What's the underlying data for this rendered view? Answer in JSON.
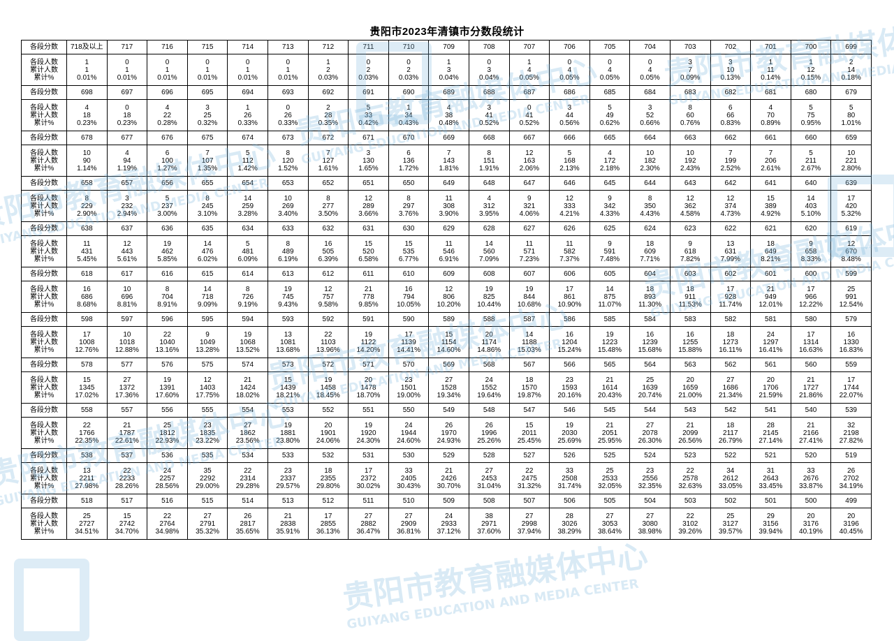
{
  "title": "贵阳市2023年清镇市分数段统计",
  "labels": {
    "score": "各段分数",
    "count": "各段人数",
    "cumulative": "累计人数",
    "percent": "累计%"
  },
  "watermark": {
    "cn": "贵阳市教育融媒体中心",
    "en": "GUIYANG EDUCATION AND MEDIA CENTER"
  },
  "blocks": [
    {
      "scores": [
        "718及以上",
        "717",
        "716",
        "715",
        "714",
        "713",
        "712",
        "711",
        "710",
        "709",
        "708",
        "707",
        "706",
        "705",
        "704",
        "703",
        "702",
        "701",
        "700",
        "699"
      ],
      "counts": [
        "1",
        "0",
        "0",
        "0",
        "0",
        "0",
        "1",
        "0",
        "0",
        "1",
        "0",
        "1",
        "0",
        "0",
        "0",
        "3",
        "3",
        "1",
        "1",
        "2"
      ],
      "cumulative": [
        "1",
        "1",
        "1",
        "1",
        "1",
        "1",
        "2",
        "2",
        "2",
        "3",
        "3",
        "4",
        "4",
        "4",
        "4",
        "7",
        "10",
        "11",
        "12",
        "14"
      ],
      "percent": [
        "0.01%",
        "0.01%",
        "0.01%",
        "0.01%",
        "0.01%",
        "0.01%",
        "0.03%",
        "0.03%",
        "0.03%",
        "0.04%",
        "0.04%",
        "0.05%",
        "0.05%",
        "0.05%",
        "0.05%",
        "0.09%",
        "0.13%",
        "0.14%",
        "0.15%",
        "0.18%"
      ]
    },
    {
      "scores": [
        "698",
        "697",
        "696",
        "695",
        "694",
        "693",
        "692",
        "691",
        "690",
        "689",
        "688",
        "687",
        "686",
        "685",
        "684",
        "683",
        "682",
        "681",
        "680",
        "679"
      ],
      "counts": [
        "4",
        "0",
        "4",
        "3",
        "1",
        "0",
        "2",
        "5",
        "1",
        "4",
        "3",
        "0",
        "3",
        "5",
        "3",
        "8",
        "6",
        "4",
        "5",
        "5"
      ],
      "cumulative": [
        "18",
        "18",
        "22",
        "25",
        "26",
        "26",
        "28",
        "33",
        "34",
        "38",
        "41",
        "41",
        "44",
        "49",
        "52",
        "60",
        "66",
        "70",
        "75",
        "80"
      ],
      "percent": [
        "0.23%",
        "0.23%",
        "0.28%",
        "0.32%",
        "0.33%",
        "0.33%",
        "0.35%",
        "0.42%",
        "0.43%",
        "0.48%",
        "0.52%",
        "0.52%",
        "0.56%",
        "0.62%",
        "0.66%",
        "0.76%",
        "0.83%",
        "0.89%",
        "0.95%",
        "1.01%"
      ]
    },
    {
      "scores": [
        "678",
        "677",
        "676",
        "675",
        "674",
        "673",
        "672",
        "671",
        "670",
        "669",
        "668",
        "667",
        "666",
        "665",
        "664",
        "663",
        "662",
        "661",
        "660",
        "659"
      ],
      "counts": [
        "10",
        "4",
        "6",
        "7",
        "5",
        "8",
        "7",
        "3",
        "6",
        "7",
        "8",
        "12",
        "5",
        "4",
        "10",
        "10",
        "7",
        "7",
        "5",
        "10"
      ],
      "cumulative": [
        "90",
        "94",
        "100",
        "107",
        "112",
        "120",
        "127",
        "130",
        "136",
        "143",
        "151",
        "163",
        "168",
        "172",
        "182",
        "192",
        "199",
        "206",
        "211",
        "221"
      ],
      "percent": [
        "1.14%",
        "1.19%",
        "1.27%",
        "1.35%",
        "1.42%",
        "1.52%",
        "1.61%",
        "1.65%",
        "1.72%",
        "1.81%",
        "1.91%",
        "2.06%",
        "2.13%",
        "2.18%",
        "2.30%",
        "2.43%",
        "2.52%",
        "2.61%",
        "2.67%",
        "2.80%"
      ]
    },
    {
      "scores": [
        "658",
        "657",
        "656",
        "655",
        "654",
        "653",
        "652",
        "651",
        "650",
        "649",
        "648",
        "647",
        "646",
        "645",
        "644",
        "643",
        "642",
        "641",
        "640",
        "639"
      ],
      "counts": [
        "8",
        "3",
        "5",
        "8",
        "14",
        "10",
        "8",
        "12",
        "8",
        "11",
        "4",
        "9",
        "12",
        "9",
        "8",
        "12",
        "12",
        "15",
        "14",
        "17"
      ],
      "cumulative": [
        "229",
        "232",
        "237",
        "245",
        "259",
        "269",
        "277",
        "289",
        "297",
        "308",
        "312",
        "321",
        "333",
        "342",
        "350",
        "362",
        "374",
        "389",
        "403",
        "420"
      ],
      "percent": [
        "2.90%",
        "2.94%",
        "3.00%",
        "3.10%",
        "3.28%",
        "3.40%",
        "3.50%",
        "3.66%",
        "3.76%",
        "3.90%",
        "3.95%",
        "4.06%",
        "4.21%",
        "4.33%",
        "4.43%",
        "4.58%",
        "4.73%",
        "4.92%",
        "5.10%",
        "5.32%"
      ]
    },
    {
      "scores": [
        "638",
        "637",
        "636",
        "635",
        "634",
        "633",
        "632",
        "631",
        "630",
        "629",
        "628",
        "627",
        "626",
        "625",
        "624",
        "623",
        "622",
        "621",
        "620",
        "619"
      ],
      "counts": [
        "11",
        "12",
        "19",
        "14",
        "5",
        "8",
        "16",
        "15",
        "15",
        "11",
        "14",
        "11",
        "11",
        "9",
        "18",
        "9",
        "13",
        "18",
        "9",
        "12"
      ],
      "cumulative": [
        "431",
        "443",
        "462",
        "476",
        "481",
        "489",
        "505",
        "520",
        "535",
        "546",
        "560",
        "571",
        "582",
        "591",
        "609",
        "618",
        "631",
        "649",
        "658",
        "670"
      ],
      "percent": [
        "5.45%",
        "5.61%",
        "5.85%",
        "6.02%",
        "6.09%",
        "6.19%",
        "6.39%",
        "6.58%",
        "6.77%",
        "6.91%",
        "7.09%",
        "7.23%",
        "7.37%",
        "7.48%",
        "7.71%",
        "7.82%",
        "7.99%",
        "8.21%",
        "8.33%",
        "8.48%"
      ]
    },
    {
      "scores": [
        "618",
        "617",
        "616",
        "615",
        "614",
        "613",
        "612",
        "611",
        "610",
        "609",
        "608",
        "607",
        "606",
        "605",
        "604",
        "603",
        "602",
        "601",
        "600",
        "599"
      ],
      "counts": [
        "16",
        "10",
        "8",
        "14",
        "8",
        "19",
        "12",
        "21",
        "16",
        "12",
        "19",
        "19",
        "17",
        "14",
        "18",
        "18",
        "17",
        "21",
        "17",
        "25"
      ],
      "cumulative": [
        "686",
        "696",
        "704",
        "718",
        "726",
        "745",
        "757",
        "778",
        "794",
        "806",
        "825",
        "844",
        "861",
        "875",
        "893",
        "911",
        "928",
        "949",
        "966",
        "991"
      ],
      "percent": [
        "8.68%",
        "8.81%",
        "8.91%",
        "9.09%",
        "9.19%",
        "9.43%",
        "9.58%",
        "9.85%",
        "10.05%",
        "10.20%",
        "10.44%",
        "10.68%",
        "10.90%",
        "11.07%",
        "11.30%",
        "11.53%",
        "11.74%",
        "12.01%",
        "12.22%",
        "12.54%"
      ]
    },
    {
      "scores": [
        "598",
        "597",
        "596",
        "595",
        "594",
        "593",
        "592",
        "591",
        "590",
        "589",
        "588",
        "587",
        "586",
        "585",
        "584",
        "583",
        "582",
        "581",
        "580",
        "579"
      ],
      "counts": [
        "17",
        "10",
        "22",
        "9",
        "19",
        "13",
        "22",
        "19",
        "17",
        "15",
        "20",
        "14",
        "16",
        "19",
        "16",
        "16",
        "18",
        "24",
        "17",
        "16"
      ],
      "cumulative": [
        "1008",
        "1018",
        "1040",
        "1049",
        "1068",
        "1081",
        "1103",
        "1122",
        "1139",
        "1154",
        "1174",
        "1188",
        "1204",
        "1223",
        "1239",
        "1255",
        "1273",
        "1297",
        "1314",
        "1330"
      ],
      "percent": [
        "12.76%",
        "12.88%",
        "13.16%",
        "13.28%",
        "13.52%",
        "13.68%",
        "13.96%",
        "14.20%",
        "14.41%",
        "14.60%",
        "14.86%",
        "15.03%",
        "15.24%",
        "15.48%",
        "15.68%",
        "15.88%",
        "16.11%",
        "16.41%",
        "16.63%",
        "16.83%"
      ]
    },
    {
      "scores": [
        "578",
        "577",
        "576",
        "575",
        "574",
        "573",
        "572",
        "571",
        "570",
        "569",
        "568",
        "567",
        "566",
        "565",
        "564",
        "563",
        "562",
        "561",
        "560",
        "559"
      ],
      "counts": [
        "15",
        "27",
        "19",
        "12",
        "21",
        "15",
        "19",
        "20",
        "23",
        "27",
        "24",
        "18",
        "23",
        "21",
        "25",
        "20",
        "27",
        "20",
        "21",
        "17"
      ],
      "cumulative": [
        "1345",
        "1372",
        "1391",
        "1403",
        "1424",
        "1439",
        "1458",
        "1478",
        "1501",
        "1528",
        "1552",
        "1570",
        "1593",
        "1614",
        "1639",
        "1659",
        "1686",
        "1706",
        "1727",
        "1744"
      ],
      "percent": [
        "17.02%",
        "17.36%",
        "17.60%",
        "17.75%",
        "18.02%",
        "18.21%",
        "18.45%",
        "18.70%",
        "19.00%",
        "19.34%",
        "19.64%",
        "19.87%",
        "20.16%",
        "20.43%",
        "20.74%",
        "21.00%",
        "21.34%",
        "21.59%",
        "21.86%",
        "22.07%"
      ]
    },
    {
      "scores": [
        "558",
        "557",
        "556",
        "555",
        "554",
        "553",
        "552",
        "551",
        "550",
        "549",
        "548",
        "547",
        "546",
        "545",
        "544",
        "543",
        "542",
        "541",
        "540",
        "539"
      ],
      "counts": [
        "22",
        "21",
        "25",
        "23",
        "27",
        "19",
        "20",
        "19",
        "24",
        "26",
        "26",
        "15",
        "19",
        "21",
        "27",
        "21",
        "18",
        "28",
        "21",
        "32"
      ],
      "cumulative": [
        "1766",
        "1787",
        "1812",
        "1835",
        "1862",
        "1881",
        "1901",
        "1920",
        "1944",
        "1970",
        "1996",
        "2011",
        "2030",
        "2051",
        "2078",
        "2099",
        "2117",
        "2145",
        "2166",
        "2198"
      ],
      "percent": [
        "22.35%",
        "22.61%",
        "22.93%",
        "23.22%",
        "23.56%",
        "23.80%",
        "24.06%",
        "24.30%",
        "24.60%",
        "24.93%",
        "25.26%",
        "25.45%",
        "25.69%",
        "25.95%",
        "26.30%",
        "26.56%",
        "26.79%",
        "27.14%",
        "27.41%",
        "27.82%"
      ]
    },
    {
      "scores": [
        "538",
        "537",
        "536",
        "535",
        "534",
        "533",
        "532",
        "531",
        "530",
        "529",
        "528",
        "527",
        "526",
        "525",
        "524",
        "523",
        "522",
        "521",
        "520",
        "519"
      ],
      "counts": [
        "13",
        "22",
        "24",
        "35",
        "22",
        "23",
        "18",
        "17",
        "33",
        "21",
        "27",
        "22",
        "33",
        "25",
        "23",
        "22",
        "34",
        "31",
        "33",
        "26"
      ],
      "cumulative": [
        "2211",
        "2233",
        "2257",
        "2292",
        "2314",
        "2337",
        "2355",
        "2372",
        "2405",
        "2426",
        "2453",
        "2475",
        "2508",
        "2533",
        "2556",
        "2578",
        "2612",
        "2643",
        "2676",
        "2702"
      ],
      "percent": [
        "27.98%",
        "28.26%",
        "28.56%",
        "29.00%",
        "29.28%",
        "29.57%",
        "29.80%",
        "30.02%",
        "30.43%",
        "30.70%",
        "31.04%",
        "31.32%",
        "31.74%",
        "32.05%",
        "32.35%",
        "32.63%",
        "33.05%",
        "33.45%",
        "33.87%",
        "34.19%"
      ]
    },
    {
      "scores": [
        "518",
        "517",
        "516",
        "515",
        "514",
        "513",
        "512",
        "511",
        "510",
        "509",
        "508",
        "507",
        "506",
        "505",
        "504",
        "503",
        "502",
        "501",
        "500",
        "499"
      ],
      "counts": [
        "25",
        "15",
        "22",
        "27",
        "26",
        "21",
        "17",
        "27",
        "27",
        "24",
        "38",
        "27",
        "28",
        "27",
        "27",
        "22",
        "25",
        "29",
        "20",
        "20"
      ],
      "cumulative": [
        "2727",
        "2742",
        "2764",
        "2791",
        "2817",
        "2838",
        "2855",
        "2882",
        "2909",
        "2933",
        "2971",
        "2998",
        "3026",
        "3053",
        "3080",
        "3102",
        "3127",
        "3156",
        "3176",
        "3196"
      ],
      "percent": [
        "34.51%",
        "34.70%",
        "34.98%",
        "35.32%",
        "35.65%",
        "35.91%",
        "36.13%",
        "36.47%",
        "36.81%",
        "37.12%",
        "37.60%",
        "37.94%",
        "38.29%",
        "38.64%",
        "38.98%",
        "39.26%",
        "39.57%",
        "39.94%",
        "40.19%",
        "40.45%"
      ]
    }
  ]
}
